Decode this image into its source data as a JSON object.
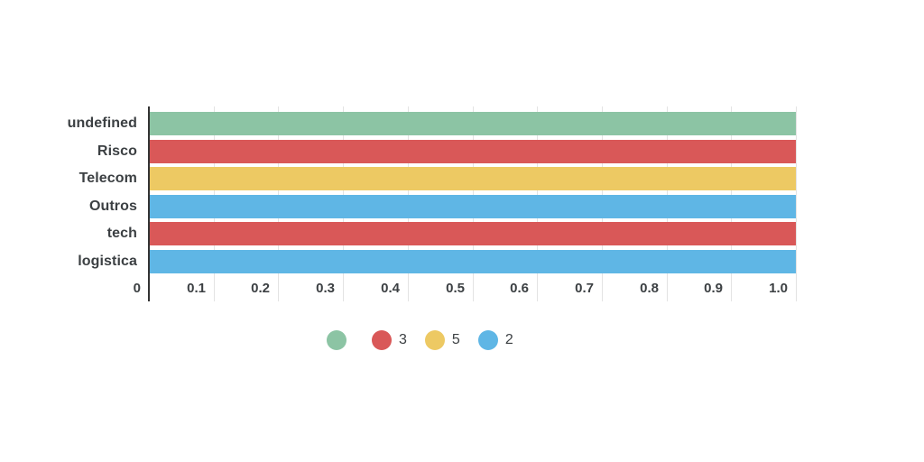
{
  "chart_data": {
    "type": "bar",
    "orientation": "horizontal",
    "title": "",
    "xlabel": "",
    "ylabel": "",
    "categories": [
      "undefined",
      "Risco",
      "Telecom",
      "Outros",
      "tech",
      "logistica"
    ],
    "values": [
      1.0,
      1.0,
      1.0,
      1.0,
      1.0,
      1.0
    ],
    "bar_colors": [
      "#8cc4a4",
      "#d95858",
      "#edc963",
      "#5fb6e5",
      "#d95858",
      "#5fb6e5"
    ],
    "x_ticks": [
      "0",
      "0.1",
      "0.2",
      "0.3",
      "0.4",
      "0.5",
      "0.6",
      "0.7",
      "0.8",
      "0.9",
      "1.0"
    ],
    "xlim": [
      0,
      1.0
    ],
    "grid": true,
    "legend_position": "bottom",
    "legend": [
      {
        "label": "",
        "color": "#8cc4a4"
      },
      {
        "label": "3",
        "color": "#d95858"
      },
      {
        "label": "5",
        "color": "#edc963"
      },
      {
        "label": "2",
        "color": "#5fb6e5"
      }
    ],
    "colors": {
      "axis": "#333333",
      "grid": "#e3e3e3",
      "text": "#3c4043"
    }
  }
}
